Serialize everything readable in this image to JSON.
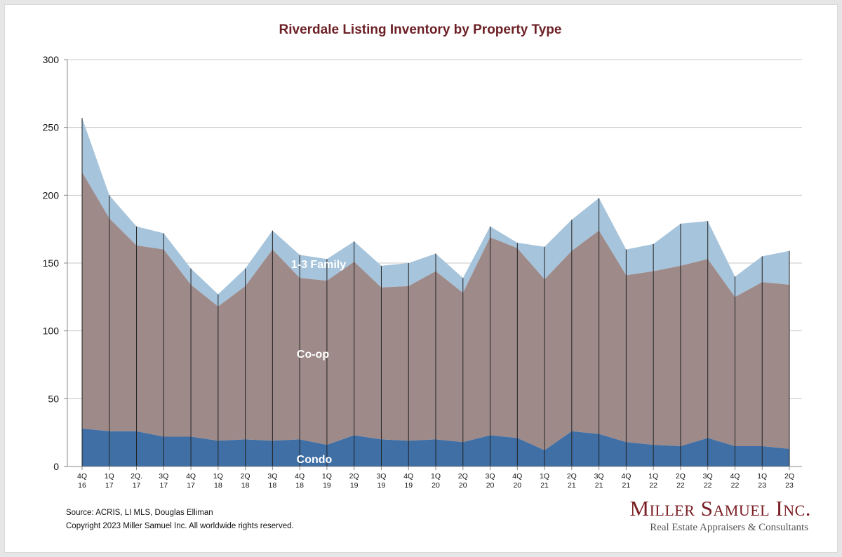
{
  "source": "Source: ACRIS, LI MLS, Douglas Elliman",
  "copyright": "Copyright 2023 Miller Samuel Inc.  All worldwide rights reserved.",
  "logo": {
    "name": "Miller Samuel Inc.",
    "tagline": "Real Estate Appraisers & Consultants"
  },
  "colors": {
    "condo": "#3f6fa5",
    "coop": "#9e8a89",
    "family": "#a6c4db",
    "title": "#6b1f24",
    "grid": "#c8c8c8",
    "divider": "#222222"
  },
  "chart_data": {
    "type": "area",
    "stacked": true,
    "title": "Riverdale Listing Inventory by Property Type",
    "xlabel": "",
    "ylabel": "",
    "ylim": [
      0,
      300
    ],
    "yticks": [
      0,
      50,
      100,
      150,
      200,
      250,
      300
    ],
    "grid": true,
    "categories": [
      [
        "4Q",
        "16"
      ],
      [
        "1Q",
        "17"
      ],
      [
        "2Q.",
        "17"
      ],
      [
        "3Q",
        "17"
      ],
      [
        "4Q",
        "17"
      ],
      [
        "1Q",
        "18"
      ],
      [
        "2Q",
        "18"
      ],
      [
        "3Q",
        "18"
      ],
      [
        "4Q",
        "18"
      ],
      [
        "1Q",
        "19"
      ],
      [
        "2Q",
        "19"
      ],
      [
        "3Q",
        "19"
      ],
      [
        "4Q",
        "19"
      ],
      [
        "1Q",
        "20"
      ],
      [
        "2Q",
        "20"
      ],
      [
        "3Q",
        "20"
      ],
      [
        "4Q",
        "20"
      ],
      [
        "1Q",
        "21"
      ],
      [
        "2Q",
        "21"
      ],
      [
        "3Q",
        "21"
      ],
      [
        "4Q",
        "21"
      ],
      [
        "1Q",
        "22"
      ],
      [
        "2Q",
        "22"
      ],
      [
        "3Q",
        "22"
      ],
      [
        "4Q",
        "22"
      ],
      [
        "1Q",
        "23"
      ],
      [
        "2Q",
        "23"
      ]
    ],
    "series": [
      {
        "name": "Condo",
        "values": [
          28,
          26,
          26,
          22,
          22,
          19,
          20,
          19,
          20,
          16,
          23,
          20,
          19,
          20,
          18,
          23,
          21,
          12,
          26,
          24,
          18,
          16,
          15,
          21,
          15,
          15,
          13
        ]
      },
      {
        "name": "Co-op",
        "values": [
          189,
          157,
          137,
          138,
          112,
          99,
          113,
          141,
          119,
          121,
          128,
          112,
          114,
          124,
          110,
          146,
          140,
          126,
          133,
          150,
          123,
          128,
          133,
          132,
          110,
          121,
          121
        ]
      },
      {
        "name": "1-3 Family",
        "values": [
          40,
          17,
          14,
          12,
          12,
          9,
          13,
          14,
          17,
          16,
          15,
          16,
          17,
          13,
          11,
          8,
          4,
          24,
          23,
          24,
          19,
          20,
          31,
          28,
          15,
          19,
          25
        ]
      }
    ]
  }
}
